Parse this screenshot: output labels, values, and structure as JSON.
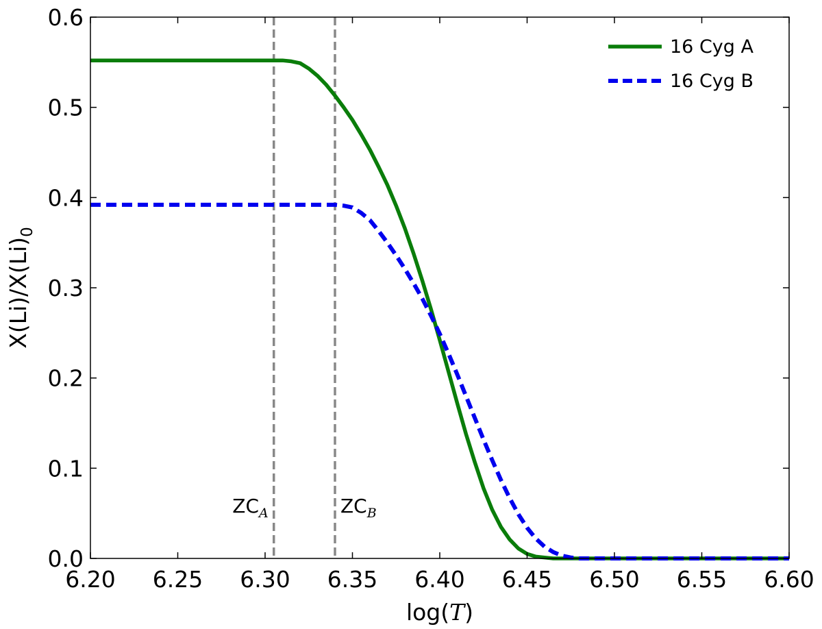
{
  "chart_data": {
    "type": "line",
    "title": "",
    "xlabel_prefix": "log(",
    "xlabel_var": "T",
    "xlabel_suffix": ")",
    "ylabel_main": "X(Li)/X(Li)",
    "ylabel_sub": "0",
    "xlim": [
      6.2,
      6.6
    ],
    "ylim": [
      0.0,
      0.6
    ],
    "xticks": [
      "6.20",
      "6.25",
      "6.30",
      "6.35",
      "6.40",
      "6.45",
      "6.50",
      "6.55",
      "6.60"
    ],
    "yticks": [
      "0.0",
      "0.1",
      "0.2",
      "0.3",
      "0.4",
      "0.5",
      "0.6"
    ],
    "grid": false,
    "legend_position": "top-right",
    "series": [
      {
        "name": "16 Cyg A",
        "color": "#0a7d0a",
        "style": "solid",
        "x": [
          6.2,
          6.25,
          6.3,
          6.31,
          6.315,
          6.32,
          6.325,
          6.33,
          6.335,
          6.34,
          6.345,
          6.35,
          6.355,
          6.36,
          6.365,
          6.37,
          6.375,
          6.38,
          6.385,
          6.39,
          6.395,
          6.4,
          6.405,
          6.41,
          6.415,
          6.42,
          6.425,
          6.43,
          6.435,
          6.44,
          6.445,
          6.45,
          6.455,
          6.46,
          6.465,
          6.47,
          6.48,
          6.5,
          6.55,
          6.6
        ],
        "y": [
          0.552,
          0.552,
          0.552,
          0.552,
          0.551,
          0.549,
          0.543,
          0.535,
          0.525,
          0.513,
          0.5,
          0.486,
          0.47,
          0.453,
          0.434,
          0.414,
          0.391,
          0.366,
          0.338,
          0.308,
          0.276,
          0.242,
          0.207,
          0.172,
          0.138,
          0.107,
          0.078,
          0.054,
          0.035,
          0.021,
          0.011,
          0.005,
          0.002,
          0.001,
          0.0,
          0.0,
          0.0,
          0.0,
          0.0,
          0.0
        ]
      },
      {
        "name": "16 Cyg B",
        "color": "#0000ee",
        "style": "dashed",
        "x": [
          6.2,
          6.25,
          6.3,
          6.34,
          6.345,
          6.35,
          6.355,
          6.36,
          6.365,
          6.37,
          6.375,
          6.38,
          6.385,
          6.39,
          6.395,
          6.4,
          6.405,
          6.41,
          6.415,
          6.42,
          6.425,
          6.43,
          6.435,
          6.44,
          6.445,
          6.45,
          6.455,
          6.46,
          6.465,
          6.47,
          6.475,
          6.48,
          6.5,
          6.55,
          6.6
        ],
        "y": [
          0.392,
          0.392,
          0.392,
          0.392,
          0.391,
          0.389,
          0.383,
          0.375,
          0.363,
          0.35,
          0.336,
          0.321,
          0.305,
          0.288,
          0.269,
          0.249,
          0.227,
          0.204,
          0.18,
          0.156,
          0.132,
          0.109,
          0.087,
          0.067,
          0.049,
          0.034,
          0.022,
          0.013,
          0.007,
          0.003,
          0.001,
          0.0,
          0.0,
          0.0,
          0.0
        ]
      }
    ],
    "vlines": [
      {
        "x": 6.305,
        "label": "ZC",
        "sub": "A",
        "color": "#888888"
      },
      {
        "x": 6.34,
        "label": "ZC",
        "sub": "B",
        "color": "#888888"
      }
    ]
  }
}
